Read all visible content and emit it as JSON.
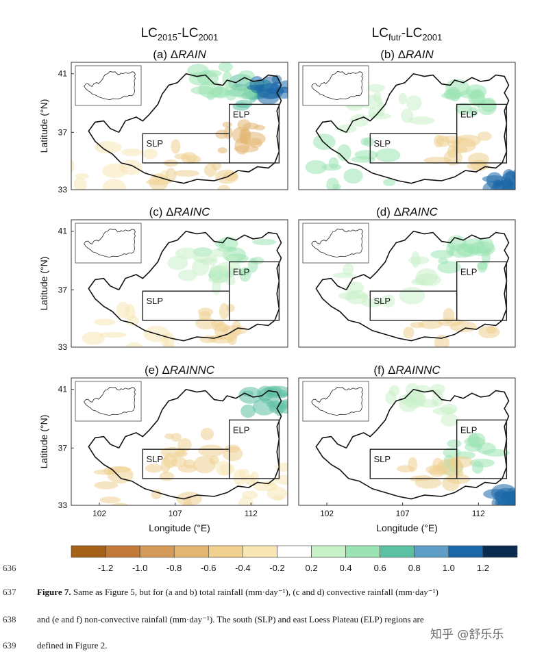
{
  "figure": {
    "column_titles": [
      {
        "base": "LC",
        "sub1": "2015",
        "mid": "-LC",
        "sub2": "2001"
      },
      {
        "base": "LC",
        "sub1": "futr",
        "mid": "-LC",
        "sub2": "2001"
      }
    ],
    "panels": [
      {
        "label": "(a) ",
        "delta": "Δ",
        "var": "RAIN"
      },
      {
        "label": "(b) ",
        "delta": "Δ",
        "var": "RAIN"
      },
      {
        "label": "(c) ",
        "delta": "Δ",
        "var": "RAINC"
      },
      {
        "label": "(d) ",
        "delta": "Δ",
        "var": "RAINC"
      },
      {
        "label": "(e) ",
        "delta": "Δ",
        "var": "RAINNC"
      },
      {
        "label": "(f) ",
        "delta": "Δ",
        "var": "RAINNC"
      }
    ],
    "y_axis_label": "Latitude (°N)",
    "x_axis_label": "Longitude (°E)",
    "y_ticks": [
      "41",
      "37",
      "33"
    ],
    "x_ticks": [
      "102",
      "107",
      "112"
    ],
    "region_labels": {
      "south": "SLP",
      "east": "ELP"
    },
    "colorbar": {
      "ticks": [
        "-1.2",
        "-1.0",
        "-0.8",
        "-0.6",
        "-0.4",
        "-0.2",
        "0.2",
        "0.4",
        "0.6",
        "0.8",
        "1.0",
        "1.2"
      ],
      "colors": [
        "#a6611a",
        "#c17a3a",
        "#d49a5a",
        "#e3b673",
        "#efd08f",
        "#f7e6b4",
        "#ffffff",
        "#c9f1c8",
        "#9be3b2",
        "#5cc0a3",
        "#5d9dc6",
        "#1c68a8",
        "#0c2c4f"
      ]
    }
  },
  "caption": {
    "line_numbers": [
      "636",
      "637",
      "638",
      "639"
    ],
    "bold_lead": "Figure 7.",
    "line1": " Same as Figure 5, but for (a and b) total rainfall (mm·day⁻¹), (c and d) convective rainfall (mm·day⁻¹)",
    "line2": "and (e and f) non-convective rainfall (mm·day⁻¹). The south (SLP) and east Loess Plateau (ELP) regions are",
    "line3": "defined in Figure 2."
  },
  "watermark": "知乎 @舒乐乐"
}
